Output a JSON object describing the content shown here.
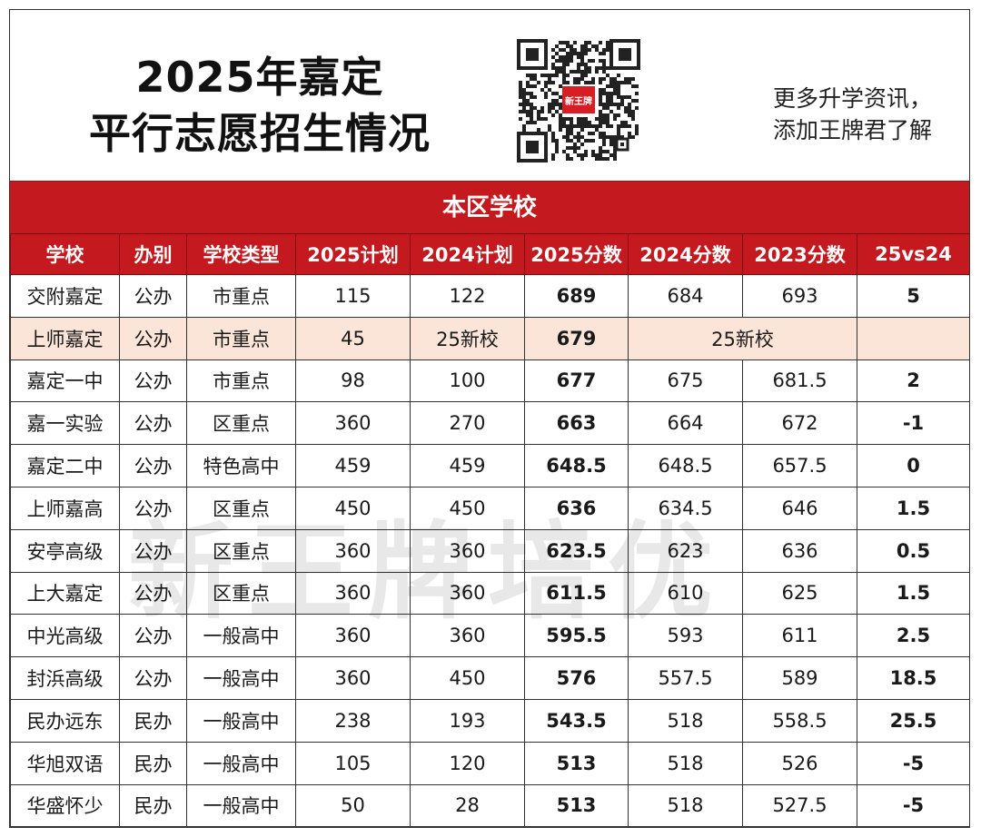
{
  "title": {
    "line1": "2025年嘉定",
    "line2": "平行志愿招生情况"
  },
  "qr": {
    "logo_text": "新王牌"
  },
  "promo": {
    "line1": "更多升学资讯，",
    "line2": "添加王牌君了解"
  },
  "section_title": "本区学校",
  "watermark": "新王牌培优",
  "colors": {
    "accent_red": "#c41a1f",
    "highlight_row": "#fbe4d8"
  },
  "table": {
    "headers": [
      "学校",
      "办别",
      "学校类型",
      "2025计划",
      "2024计划",
      "2025分数",
      "2024分数",
      "2023分数",
      "25vs24"
    ],
    "rows": [
      [
        "交附嘉定",
        "公办",
        "市重点",
        "115",
        "122",
        "689",
        "684",
        "693",
        "5"
      ],
      [
        "上师嘉定",
        "公办",
        "市重点",
        "45",
        "25新校",
        "679",
        "25新校",
        "",
        ""
      ],
      [
        "嘉定一中",
        "公办",
        "市重点",
        "98",
        "100",
        "677",
        "675",
        "681.5",
        "2"
      ],
      [
        "嘉一实验",
        "公办",
        "区重点",
        "360",
        "270",
        "663",
        "664",
        "672",
        "-1"
      ],
      [
        "嘉定二中",
        "公办",
        "特色高中",
        "459",
        "459",
        "648.5",
        "648.5",
        "657.5",
        "0"
      ],
      [
        "上师嘉高",
        "公办",
        "区重点",
        "450",
        "450",
        "636",
        "634.5",
        "646",
        "1.5"
      ],
      [
        "安亭高级",
        "公办",
        "区重点",
        "360",
        "360",
        "623.5",
        "623",
        "636",
        "0.5"
      ],
      [
        "上大嘉定",
        "公办",
        "区重点",
        "360",
        "360",
        "611.5",
        "610",
        "625",
        "1.5"
      ],
      [
        "中光高级",
        "公办",
        "一般高中",
        "360",
        "360",
        "595.5",
        "593",
        "611",
        "2.5"
      ],
      [
        "封浜高级",
        "公办",
        "一般高中",
        "360",
        "450",
        "576",
        "557.5",
        "589",
        "18.5"
      ],
      [
        "民办远东",
        "民办",
        "一般高中",
        "238",
        "193",
        "543.5",
        "518",
        "558.5",
        "25.5"
      ],
      [
        "华旭双语",
        "民办",
        "一般高中",
        "105",
        "120",
        "513",
        "518",
        "526",
        "-5"
      ],
      [
        "华盛怀少",
        "民办",
        "一般高中",
        "50",
        "28",
        "513",
        "518",
        "527.5",
        "-5"
      ]
    ]
  }
}
